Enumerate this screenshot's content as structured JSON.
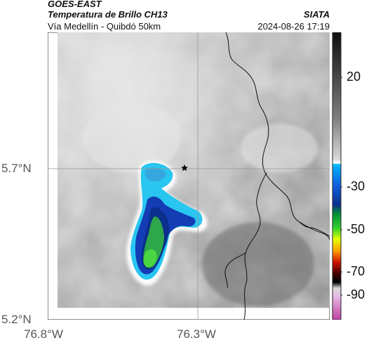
{
  "header": {
    "source": "GOES-EAST",
    "product": "Temperatura de Brillo CH13",
    "region": "Vía Medellín - Quibdó 50km",
    "org": "SIATA",
    "datetime": "2024-08-26 17:19"
  },
  "axes": {
    "lat_ticks": [
      "5.7°N",
      "5.2°N"
    ],
    "lon_ticks": [
      "76.8°W",
      "76.3°W"
    ]
  },
  "colorbar": {
    "ticks": [
      "20",
      "-30",
      "-50",
      "-70",
      "-90"
    ],
    "colors": [
      "#101010",
      "#5a5a5a",
      "#b0b0b0",
      "#ffffff",
      "#00b7ff",
      "#0040c0",
      "#00a000",
      "#e0ff00",
      "#ff6000",
      "#c00000",
      "#200000",
      "#d0a0e0",
      "#c040a0"
    ]
  },
  "map": {
    "marker": "star-icon",
    "cloud_colors": {
      "outer": "#ffffff",
      "cyan": "#28c6f0",
      "blue": "#143cb4",
      "navy": "#0a2f8c",
      "green": "#2ea64b",
      "lime": "#49d641"
    }
  }
}
